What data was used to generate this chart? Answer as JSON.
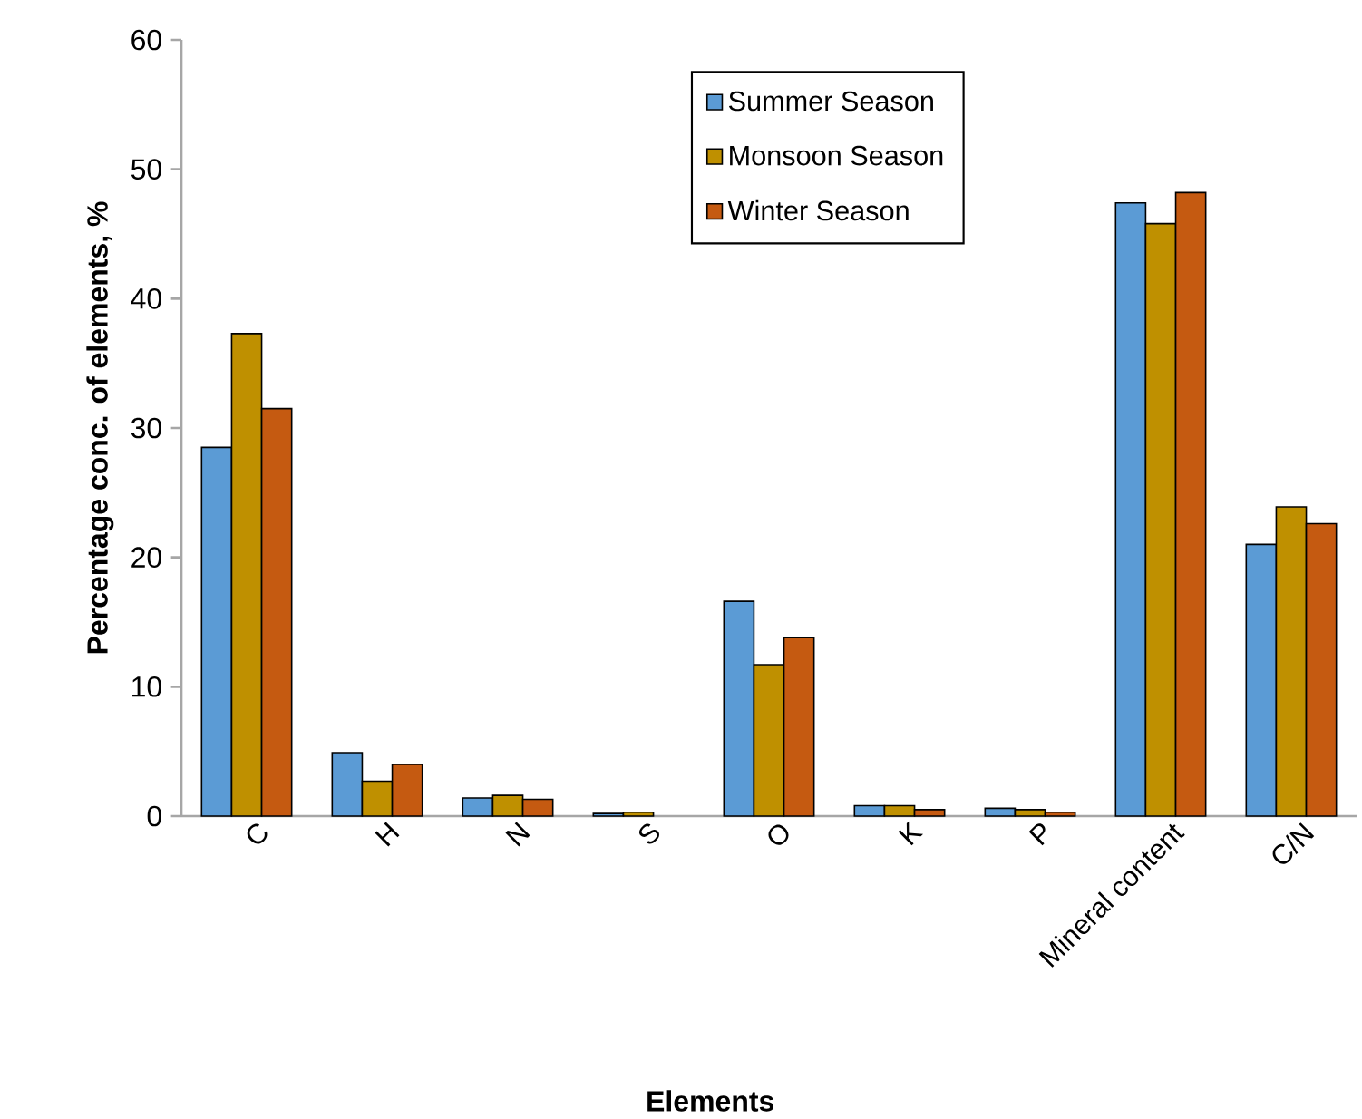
{
  "chart_data": {
    "type": "bar",
    "xlabel": "Elements",
    "ylabel": "Percentage conc. of elements, %",
    "categories": [
      "C",
      "H",
      "N",
      "S",
      "O",
      "K",
      "P",
      "Mineral content",
      "C/N"
    ],
    "series": [
      {
        "name": "Summer Season",
        "color": "#5b9bd5",
        "values": [
          28.5,
          4.9,
          1.4,
          0.2,
          16.6,
          0.8,
          0.6,
          47.4,
          21.0
        ]
      },
      {
        "name": "Monsoon Season",
        "color": "#bf9000",
        "values": [
          37.3,
          2.7,
          1.6,
          0.3,
          11.7,
          0.8,
          0.5,
          45.8,
          23.9
        ]
      },
      {
        "name": "Winter Season",
        "color": "#c55a11",
        "values": [
          31.5,
          4.0,
          1.3,
          null,
          13.8,
          0.5,
          0.3,
          48.2,
          22.6
        ]
      }
    ],
    "ylim": [
      0,
      60
    ],
    "yticks": [
      0,
      10,
      20,
      30,
      40,
      50,
      60
    ],
    "grid": false,
    "legend": "top"
  }
}
